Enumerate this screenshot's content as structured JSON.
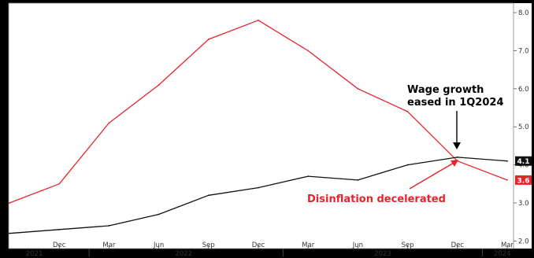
{
  "chart_data": {
    "type": "line",
    "title": "",
    "xlabel": "",
    "ylabel": "",
    "x": [
      "2021-09",
      "2021-12",
      "2022-03",
      "2022-06",
      "2022-09",
      "2022-12",
      "2023-03",
      "2023-06",
      "2023-09",
      "2023-12",
      "2024-03"
    ],
    "x_tick_labels": [
      "Dec",
      "Mar",
      "Jun",
      "Sep",
      "Dec",
      "Mar",
      "Jun",
      "Sep",
      "Dec",
      "Mar"
    ],
    "x_year_labels": [
      "2021",
      "2022",
      "2023",
      "2024"
    ],
    "ylim": [
      1.8,
      8.25
    ],
    "y_ticks": [
      "2.0",
      "3.0",
      "4.0",
      "5.0",
      "6.0",
      "7.0",
      "8.0"
    ],
    "series": [
      {
        "name": "",
        "color": "#e8232a",
        "values": [
          3.0,
          3.5,
          5.1,
          6.1,
          7.3,
          7.8,
          7.0,
          6.0,
          5.4,
          4.1,
          3.6
        ],
        "end_label": "3.6"
      },
      {
        "name": "",
        "color": "#111111",
        "values": [
          2.2,
          2.3,
          2.4,
          2.7,
          3.2,
          3.4,
          3.7,
          3.6,
          4.0,
          4.2,
          4.1
        ],
        "end_label": "4.1"
      }
    ],
    "annotations": [
      {
        "text": "Wage growth eased in 1Q2024",
        "lines": [
          "Wage growth",
          "eased in 1Q2024"
        ],
        "color": "#000000"
      },
      {
        "text": "Disinflation decelerated",
        "color": "#e8232a"
      }
    ],
    "grid": false,
    "legend": "none"
  }
}
